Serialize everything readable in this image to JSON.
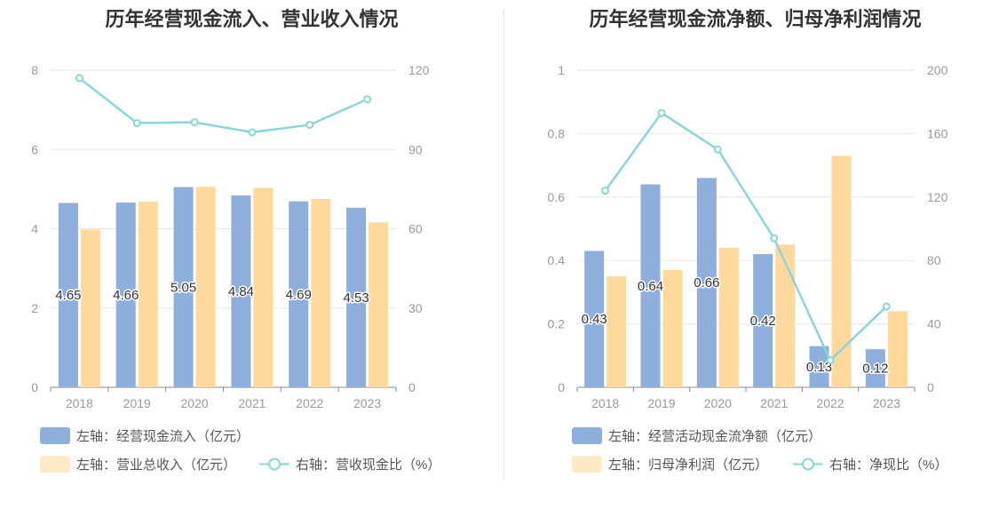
{
  "colors": {
    "bar1": "#8eaedb",
    "bar2": "#ffd89c",
    "bar2_legend": "#ffeac8",
    "line": "#88d6dc",
    "grid": "#e6e6e6",
    "axis": "#999999"
  },
  "chart_data": [
    {
      "type": "bar",
      "title": "历年经营现金流入、营业收入情况",
      "categories": [
        "2018",
        "2019",
        "2020",
        "2021",
        "2022",
        "2023"
      ],
      "ylim": [
        0,
        8
      ],
      "y_ticks": [
        "0",
        "2",
        "4",
        "6",
        "8"
      ],
      "y2lim": [
        0,
        120
      ],
      "y2_ticks": [
        "0",
        "30",
        "60",
        "90",
        "120"
      ],
      "grid": true,
      "legend_position": "bottom",
      "series": [
        {
          "name": "左轴：经营现金流入（亿元）",
          "kind": "bar",
          "axis": "left",
          "values": [
            4.65,
            4.66,
            5.05,
            4.84,
            4.69,
            4.53
          ],
          "labels": [
            "4.65",
            "4.66",
            "5.05",
            "4.84",
            "4.69",
            "4.53"
          ]
        },
        {
          "name": "左轴：营业总收入（亿元）",
          "kind": "bar",
          "axis": "left",
          "values": [
            3.98,
            4.68,
            5.06,
            5.03,
            4.75,
            4.16
          ]
        },
        {
          "name": "右轴：营收现金比（%）",
          "kind": "line",
          "axis": "right",
          "values": [
            117,
            100,
            100.3,
            96.5,
            99.3,
            109
          ]
        }
      ]
    },
    {
      "type": "bar",
      "title": "历年经营现金流净额、归母净利润情况",
      "categories": [
        "2018",
        "2019",
        "2020",
        "2021",
        "2022",
        "2023"
      ],
      "ylim": [
        0,
        1
      ],
      "y_ticks": [
        "0",
        "0.2",
        "0.4",
        "0.6",
        "0.8",
        "1"
      ],
      "y2lim": [
        0,
        200
      ],
      "y2_ticks": [
        "0",
        "40",
        "80",
        "120",
        "160",
        "200"
      ],
      "grid": true,
      "legend_position": "bottom",
      "series": [
        {
          "name": "左轴：经营活动现金流净额（亿元）",
          "kind": "bar",
          "axis": "left",
          "values": [
            0.43,
            0.64,
            0.66,
            0.42,
            0.13,
            0.12
          ],
          "labels": [
            "0.43",
            "0.64",
            "0.66",
            "0.42",
            "0.13",
            "0.12"
          ]
        },
        {
          "name": "左轴：归母净利润（亿元）",
          "kind": "bar",
          "axis": "left",
          "values": [
            0.35,
            0.37,
            0.44,
            0.45,
            0.73,
            0.24
          ]
        },
        {
          "name": "右轴：净现比（%）",
          "kind": "line",
          "axis": "right",
          "values": [
            124,
            173,
            150,
            94,
            17,
            51
          ]
        }
      ]
    }
  ]
}
